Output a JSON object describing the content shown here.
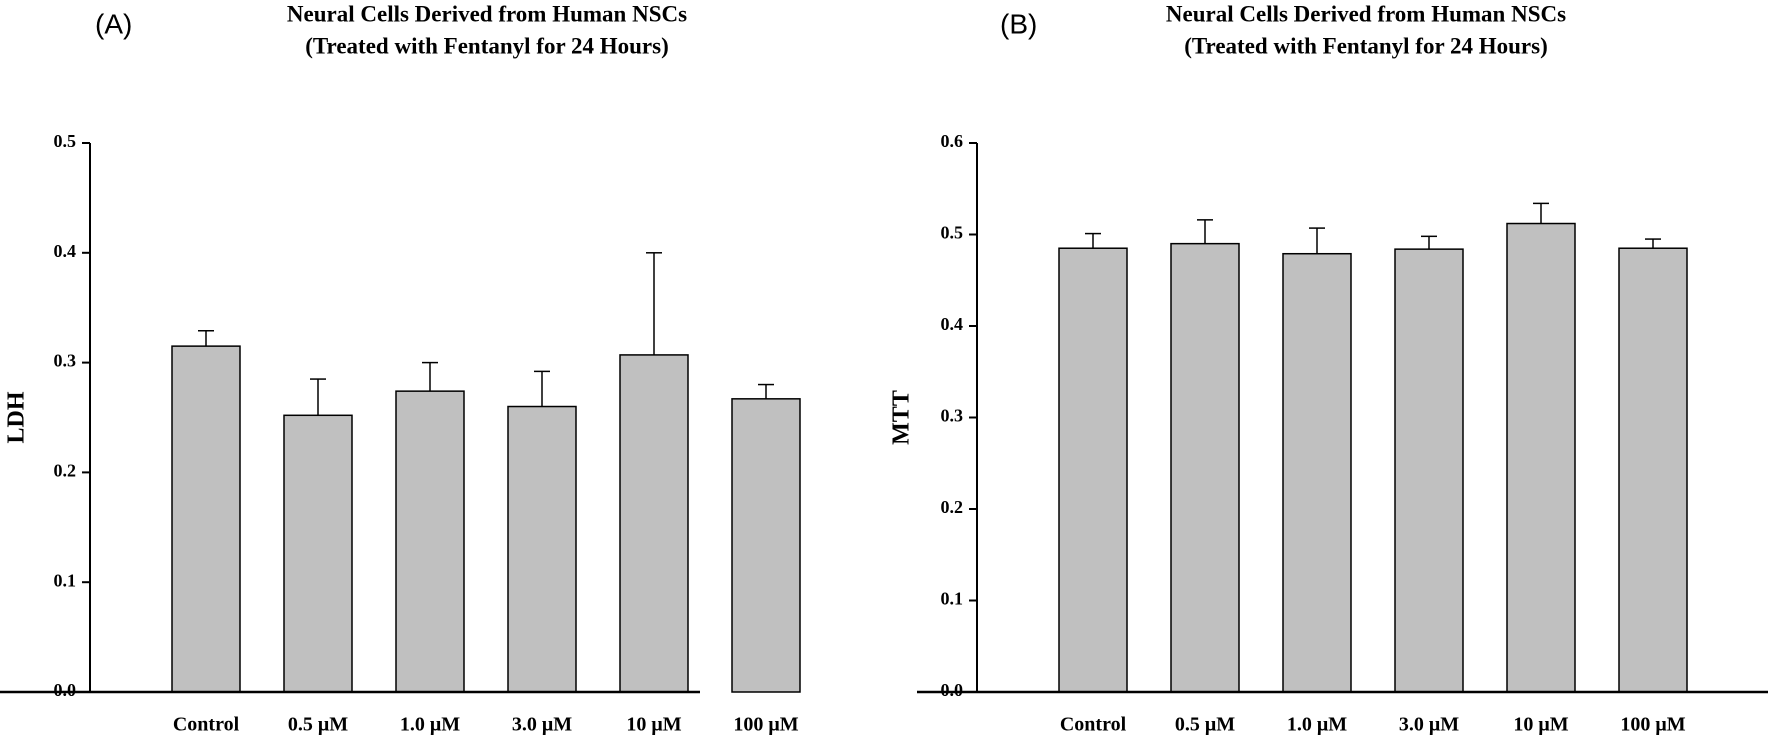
{
  "chart_data": [
    {
      "type": "bar",
      "panel_label": "(A)",
      "title": "Neural Cells Derived from Human NSCs",
      "subtitle": "(Treated with Fentanyl for 24 Hours)",
      "y_label": "LDH",
      "categories": [
        "Control",
        "0.5 μM",
        "1.0 μM",
        "3.0 μM",
        "10 μM",
        "100 μM"
      ],
      "values": [
        0.315,
        0.252,
        0.274,
        0.26,
        0.307,
        0.267
      ],
      "errors": [
        0.014,
        0.033,
        0.026,
        0.032,
        0.093,
        0.013
      ],
      "color": "#c0c0c0",
      "ylim": [
        0,
        0.5
      ],
      "yticks": [
        {
          "value": 0,
          "label": "0.0"
        },
        0.1,
        0.2,
        0.3,
        0.4,
        0.5
      ]
    },
    {
      "type": "bar",
      "panel_label": "(B)",
      "title": "Neural Cells Derived from Human NSCs",
      "subtitle": "(Treated with Fentanyl for 24 Hours)",
      "y_label": "MTT",
      "categories": [
        "Control",
        "0.5 μM",
        "1.0 μM",
        "3.0 μM",
        "10 μM",
        "100 μM"
      ],
      "values": [
        0.485,
        0.49,
        0.479,
        0.484,
        0.512,
        0.485
      ],
      "errors": [
        0.016,
        0.026,
        0.028,
        0.014,
        0.022,
        0.01
      ],
      "color": "#c0c0c0",
      "ylim": [
        0,
        0.6
      ],
      "yticks": [
        {
          "value": 0,
          "label": "0.0"
        },
        0.1,
        0.2,
        0.3,
        0.4,
        0.5,
        0.6
      ]
    }
  ]
}
